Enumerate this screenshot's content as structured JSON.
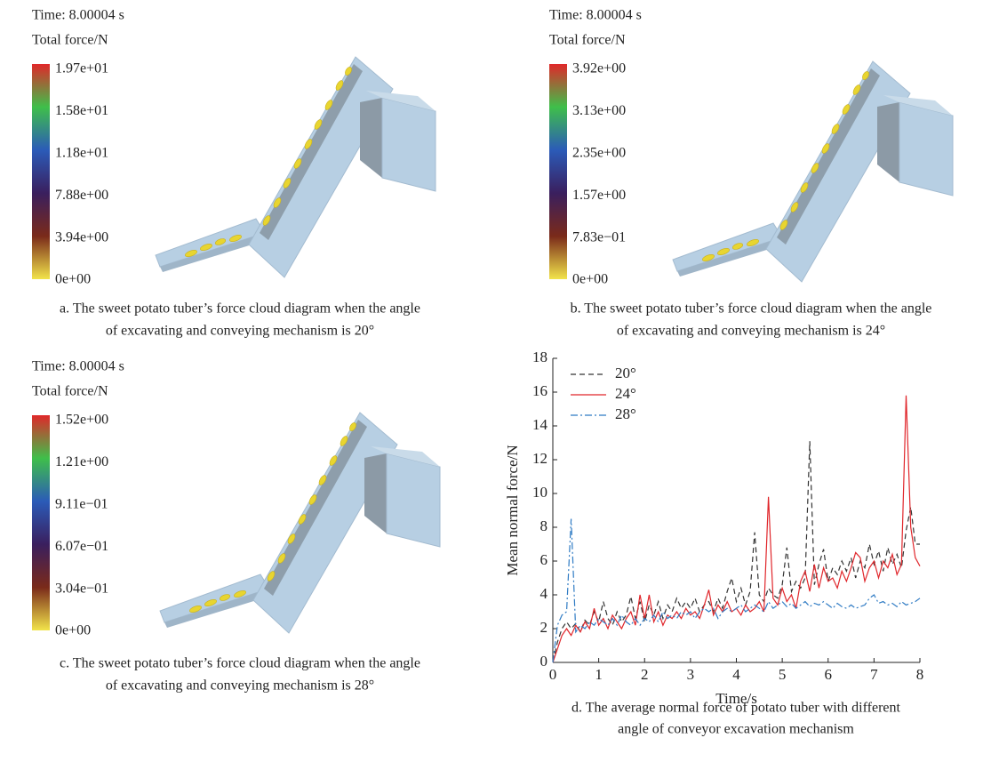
{
  "panels": [
    {
      "time": "Time: 8.00004 s",
      "colorbar_title": "Total force/N",
      "colorbar_labels": [
        "1.97e+01",
        "1.58e+01",
        "1.18e+01",
        "7.88e+00",
        "3.94e+00",
        "0e+00"
      ],
      "caption": [
        "a. The sweet potato tuber’s force cloud diagram when the angle",
        "of excavating and conveying mechanism is 20°"
      ]
    },
    {
      "time": "Time: 8.00004 s",
      "colorbar_title": "Total force/N",
      "colorbar_labels": [
        "3.92e+00",
        "3.13e+00",
        "2.35e+00",
        "1.57e+00",
        "7.83e−01",
        "0e+00"
      ],
      "caption": [
        "b. The sweet potato tuber’s force cloud diagram when the angle",
        "of excavating and conveying mechanism is 24°"
      ]
    },
    {
      "time": "Time: 8.00004 s",
      "colorbar_title": "Total force/N",
      "colorbar_labels": [
        "1.52e+00",
        "1.21e+00",
        "9.11e−01",
        "6.07e−01",
        "3.04e−01",
        "0e+00"
      ],
      "caption": [
        "c. The sweet potato tuber’s force cloud diagram when the angle",
        "of excavating and conveying mechanism is 28°"
      ]
    }
  ],
  "chart_data": {
    "type": "line",
    "caption": [
      "d. The average normal force of potato tuber with different",
      "angle of conveyor excavation mechanism"
    ],
    "xlabel": "Time/s",
    "ylabel": "Mean normal force/N",
    "xlim": [
      0,
      8
    ],
    "ylim": [
      0,
      18
    ],
    "xticks": [
      0,
      1,
      2,
      3,
      4,
      5,
      6,
      7,
      8
    ],
    "yticks": [
      0,
      2,
      4,
      6,
      8,
      10,
      12,
      14,
      16,
      18
    ],
    "legend": "upper left",
    "x": [
      0,
      0.1,
      0.2,
      0.3,
      0.4,
      0.5,
      0.6,
      0.7,
      0.8,
      0.9,
      1,
      1.1,
      1.2,
      1.3,
      1.4,
      1.5,
      1.6,
      1.7,
      1.8,
      1.9,
      2,
      2.1,
      2.2,
      2.3,
      2.4,
      2.5,
      2.6,
      2.7,
      2.8,
      2.9,
      3,
      3.1,
      3.2,
      3.3,
      3.4,
      3.5,
      3.6,
      3.7,
      3.8,
      3.9,
      4,
      4.1,
      4.2,
      4.3,
      4.4,
      4.5,
      4.6,
      4.7,
      4.8,
      4.9,
      5,
      5.1,
      5.2,
      5.3,
      5.4,
      5.5,
      5.6,
      5.7,
      5.8,
      5.9,
      6,
      6.1,
      6.2,
      6.3,
      6.4,
      6.5,
      6.6,
      6.7,
      6.8,
      6.9,
      7,
      7.1,
      7.2,
      7.3,
      7.4,
      7.5,
      7.6,
      7.7,
      7.8,
      7.9,
      8
    ],
    "series": [
      {
        "name": "20°",
        "color": "#333333",
        "dash": "6,4",
        "values": [
          0,
          1.2,
          2.0,
          2.4,
          2.0,
          2.3,
          1.8,
          2.5,
          2.2,
          3.0,
          2.4,
          3.6,
          2.6,
          2.2,
          3.0,
          2.4,
          2.8,
          3.9,
          2.6,
          3.6,
          2.4,
          3.4,
          2.8,
          3.6,
          2.6,
          3.4,
          3.0,
          3.8,
          3.2,
          3.6,
          3.2,
          3.8,
          3.0,
          3.4,
          3.6,
          3.0,
          3.8,
          3.2,
          4.2,
          5.0,
          3.6,
          4.4,
          3.4,
          4.2,
          7.7,
          4.0,
          3.6,
          4.4,
          4.0,
          3.8,
          4.6,
          6.8,
          4.2,
          4.8,
          4.4,
          5.0,
          13.1,
          4.6,
          5.8,
          6.7,
          4.8,
          5.6,
          5.2,
          6.0,
          5.4,
          6.2,
          5.0,
          6.0,
          5.6,
          7.0,
          5.8,
          6.6,
          5.4,
          6.8,
          5.8,
          6.4,
          5.6,
          7.8,
          9.2,
          7.0,
          7.0
        ]
      },
      {
        "name": "24°",
        "color": "#e0262b",
        "dash": "none",
        "values": [
          0,
          0.8,
          1.6,
          2.0,
          1.6,
          2.2,
          1.8,
          2.4,
          2.0,
          3.2,
          2.2,
          2.6,
          2.0,
          2.8,
          2.4,
          2.0,
          2.6,
          3.0,
          2.2,
          4.0,
          2.6,
          4.0,
          2.4,
          3.0,
          2.2,
          2.8,
          2.6,
          3.0,
          2.6,
          3.2,
          2.8,
          3.0,
          2.6,
          3.4,
          4.3,
          2.8,
          3.4,
          3.0,
          3.6,
          3.0,
          3.2,
          2.8,
          3.4,
          3.0,
          3.2,
          3.6,
          3.0,
          9.8,
          3.8,
          3.4,
          4.4,
          3.6,
          4.0,
          3.2,
          4.8,
          5.4,
          4.2,
          5.8,
          4.4,
          5.6,
          4.8,
          5.0,
          4.4,
          5.4,
          4.8,
          5.6,
          6.5,
          6.2,
          4.8,
          5.6,
          6.0,
          5.0,
          6.0,
          5.6,
          6.4,
          5.2,
          5.8,
          15.8,
          8.0,
          6.2,
          5.7
        ]
      },
      {
        "name": "28°",
        "color": "#2f7bc4",
        "dash": "8,3,2,3",
        "values": [
          0,
          2.2,
          2.8,
          3.0,
          8.5,
          1.8,
          2.2,
          2.0,
          2.4,
          2.2,
          2.6,
          2.4,
          2.2,
          2.6,
          2.2,
          2.8,
          2.4,
          2.2,
          2.6,
          2.2,
          2.6,
          2.4,
          2.8,
          2.4,
          3.0,
          2.6,
          2.8,
          2.6,
          3.0,
          2.8,
          3.0,
          2.6,
          3.0,
          3.2,
          3.0,
          3.2,
          2.6,
          3.0,
          3.2,
          3.0,
          3.2,
          3.4,
          3.0,
          3.2,
          3.4,
          3.2,
          3.0,
          3.6,
          3.2,
          3.4,
          3.6,
          3.3,
          3.5,
          3.2,
          3.4,
          3.6,
          3.3,
          3.5,
          3.4,
          3.6,
          3.4,
          3.2,
          3.5,
          3.3,
          3.2,
          3.4,
          3.2,
          3.3,
          3.4,
          3.8,
          4.0,
          3.5,
          3.6,
          3.4,
          3.5,
          3.3,
          3.6,
          3.4,
          3.5,
          3.6,
          3.8
        ]
      }
    ]
  }
}
